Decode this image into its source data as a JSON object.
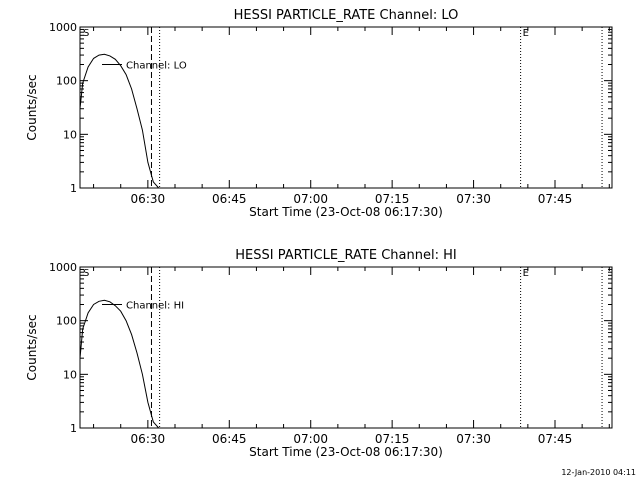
{
  "footer_timestamp": "12-Jan-2010 04:11",
  "colors": {
    "ink": "#000000",
    "background": "#ffffff"
  },
  "chart_data": [
    {
      "type": "line",
      "title": "HESSI PARTICLE_RATE Channel: LO",
      "xlabel": "Start Time (23-Oct-08 06:17:30)",
      "ylabel": "Counts/sec",
      "y_scale": "log",
      "ylim": [
        1,
        1000
      ],
      "xlim": [
        "06:17:30",
        "07:55:30"
      ],
      "x_ticks": [
        "06:30",
        "06:45",
        "07:00",
        "07:15",
        "07:30",
        "07:45"
      ],
      "y_ticks": [
        "1",
        "10",
        "100",
        "1000"
      ],
      "legend": {
        "label": "Channel: LO",
        "placement": "top-left"
      },
      "markers": [
        {
          "label": "S",
          "time": "06:17:30",
          "style": "text"
        },
        {
          "label": "E",
          "time": "07:38:40",
          "style": "dotted"
        }
      ],
      "vlines": [
        {
          "time": "06:30:40",
          "style": "dashed"
        },
        {
          "time": "06:32:10",
          "style": "dotted"
        },
        {
          "time": "07:38:40",
          "style": "dotted"
        },
        {
          "time": "07:53:40",
          "style": "dotted"
        }
      ],
      "grid": false,
      "series": [
        {
          "name": "Channel: LO",
          "x": [
            "06:17:30",
            "06:18:00",
            "06:19:00",
            "06:20:00",
            "06:21:00",
            "06:22:00",
            "06:23:00",
            "06:24:00",
            "06:25:00",
            "06:26:00",
            "06:27:00",
            "06:28:00",
            "06:29:00",
            "06:30:00",
            "06:31:00",
            "06:32:00"
          ],
          "y": [
            30,
            90,
            180,
            260,
            300,
            310,
            290,
            250,
            190,
            130,
            70,
            30,
            12,
            3,
            1.3,
            1
          ]
        }
      ]
    },
    {
      "type": "line",
      "title": "HESSI PARTICLE_RATE Channel: HI",
      "xlabel": "Start Time (23-Oct-08 06:17:30)",
      "ylabel": "Counts/sec",
      "y_scale": "log",
      "ylim": [
        1,
        1000
      ],
      "xlim": [
        "06:17:30",
        "07:55:30"
      ],
      "x_ticks": [
        "06:30",
        "06:45",
        "07:00",
        "07:15",
        "07:30",
        "07:45"
      ],
      "y_ticks": [
        "1",
        "10",
        "100",
        "1000"
      ],
      "legend": {
        "label": "Channel: HI",
        "placement": "top-left"
      },
      "markers": [
        {
          "label": "S",
          "time": "06:17:30",
          "style": "text"
        },
        {
          "label": "E",
          "time": "07:38:40",
          "style": "dotted"
        }
      ],
      "vlines": [
        {
          "time": "06:30:40",
          "style": "dashed"
        },
        {
          "time": "06:32:10",
          "style": "dotted"
        },
        {
          "time": "07:38:40",
          "style": "dotted"
        },
        {
          "time": "07:53:40",
          "style": "dotted"
        }
      ],
      "grid": false,
      "series": [
        {
          "name": "Channel: HI",
          "x": [
            "06:17:30",
            "06:18:00",
            "06:19:00",
            "06:20:00",
            "06:21:00",
            "06:22:00",
            "06:23:00",
            "06:24:00",
            "06:25:00",
            "06:26:00",
            "06:27:00",
            "06:28:00",
            "06:29:00",
            "06:30:00",
            "06:31:00",
            "06:32:00"
          ],
          "y": [
            20,
            70,
            140,
            200,
            230,
            240,
            225,
            190,
            150,
            100,
            55,
            25,
            10,
            3,
            1.3,
            1
          ]
        }
      ]
    }
  ]
}
